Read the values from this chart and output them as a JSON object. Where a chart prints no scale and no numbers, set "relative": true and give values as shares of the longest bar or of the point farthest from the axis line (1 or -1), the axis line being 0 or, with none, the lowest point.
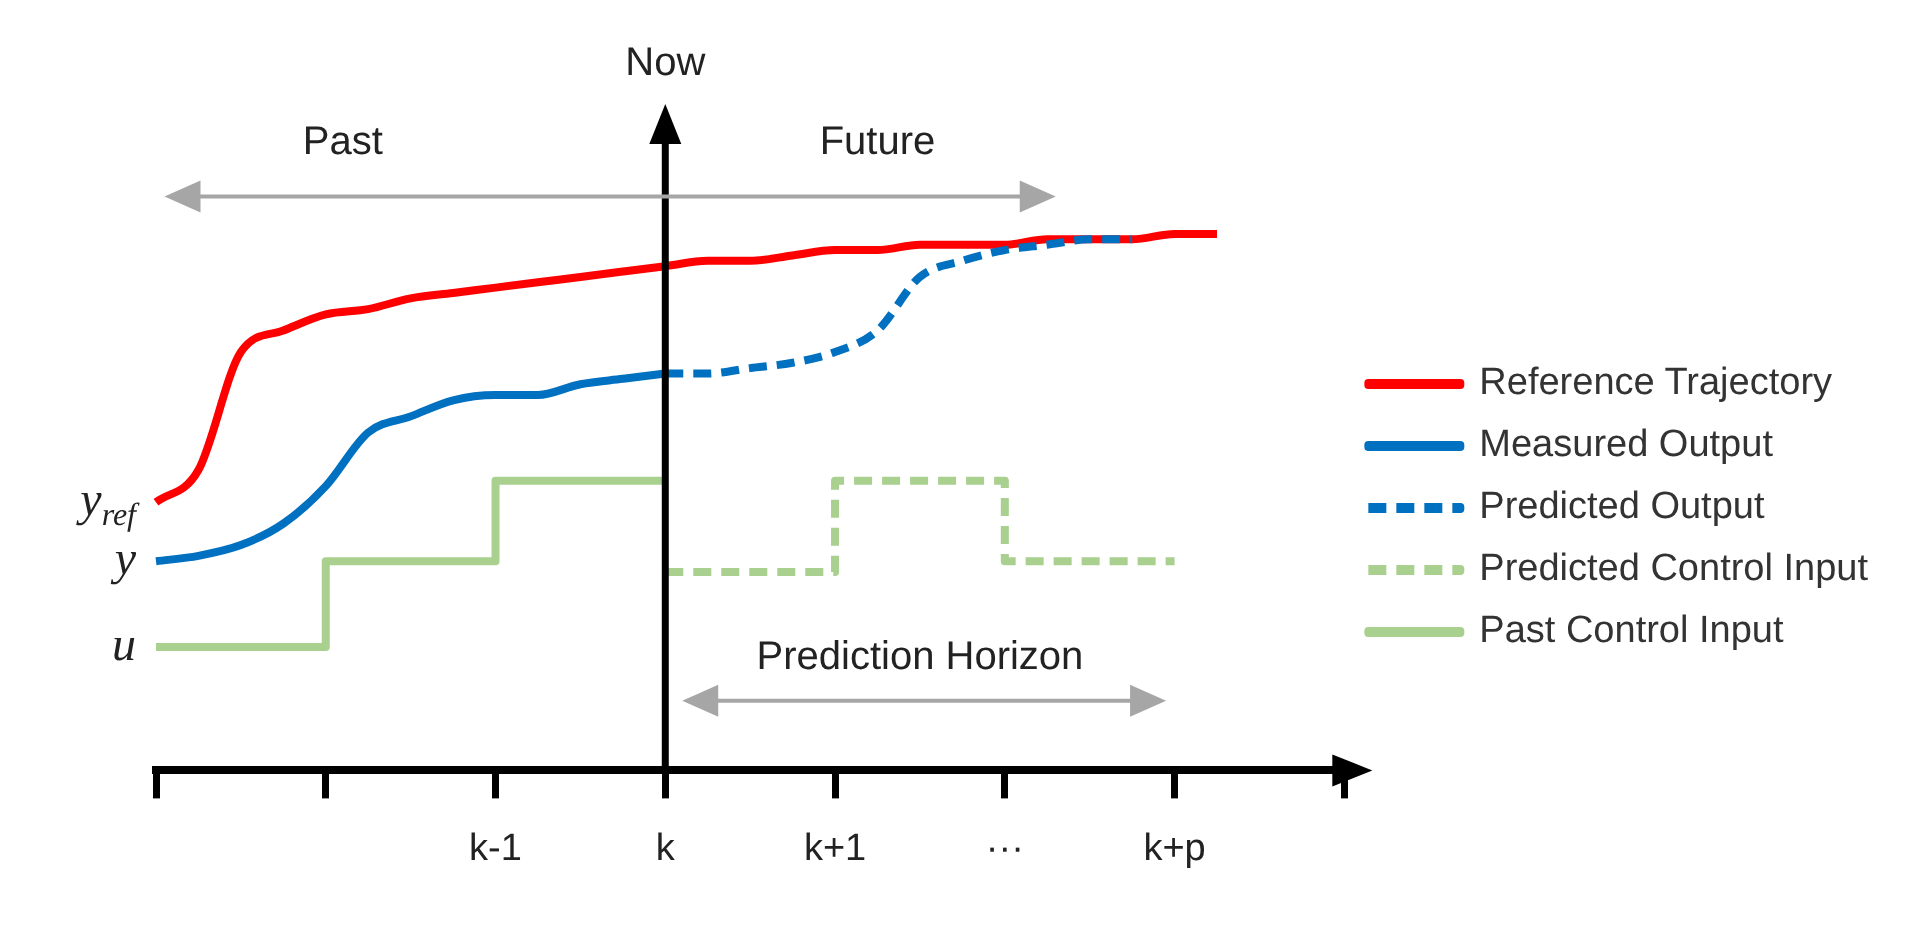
{
  "chart_data": {
    "type": "line",
    "relative": true,
    "categories": [
      null,
      null,
      null,
      null,
      null,
      null,
      null,
      null,
      "k-1",
      null,
      null,
      null,
      "k",
      null,
      null,
      null,
      "k+1",
      null,
      null,
      null,
      "···",
      null,
      null,
      null,
      "k+p",
      null,
      null,
      null,
      null
    ],
    "ref_lines": [
      {
        "axis": "x",
        "value": "k",
        "label": "Now",
        "color": "#000000"
      }
    ],
    "annotations": [
      "Past",
      "Future",
      "Prediction Horizon",
      "y$_{ref}$",
      "y",
      "u"
    ],
    "legend": "right",
    "grid": false,
    "marker": "none",
    "series": [
      {
        "name": "Reference Trajectory",
        "type": "line",
        "line_style": "solid",
        "color": "#ff0000",
        "values": [
          0.5,
          0.56,
          0.78,
          0.82,
          0.85,
          0.86,
          0.88,
          0.89,
          0.9,
          0.91,
          0.92,
          0.93,
          0.94,
          0.95,
          0.95,
          0.96,
          0.97,
          0.97,
          0.98,
          0.98,
          0.98,
          0.99,
          0.99,
          0.99,
          1,
          1,
          null,
          null,
          null
        ]
      },
      {
        "name": "Measured Output",
        "type": "line",
        "line_style": "solid",
        "color": "#0070c0",
        "values": [
          0.39,
          0.4,
          0.42,
          0.46,
          0.53,
          0.63,
          0.66,
          0.69,
          0.7,
          0.7,
          0.72,
          0.73,
          0.74,
          null,
          null,
          null,
          null,
          null,
          null,
          null,
          null,
          null,
          null,
          null,
          null,
          null,
          null,
          null,
          null
        ]
      },
      {
        "name": "Predicted Output",
        "type": "line",
        "line_style": "dashed",
        "color": "#0070c0",
        "values": [
          null,
          null,
          null,
          null,
          null,
          null,
          null,
          null,
          null,
          null,
          null,
          null,
          0.74,
          0.74,
          0.75,
          0.76,
          0.78,
          0.82,
          0.92,
          0.95,
          0.97,
          0.98,
          0.99,
          0.99,
          null,
          null,
          null,
          null,
          null
        ]
      },
      {
        "name": "Predicted Control Input",
        "type": "step",
        "line_style": "dashed",
        "color": "#a9d08e",
        "values": [
          null,
          null,
          null,
          null,
          null,
          null,
          null,
          null,
          null,
          null,
          null,
          null,
          0.37,
          0.37,
          0.37,
          0.37,
          0.54,
          0.54,
          0.54,
          0.54,
          0.39,
          0.39,
          0.39,
          0.39,
          0.39,
          null,
          null,
          null,
          null
        ]
      },
      {
        "name": "Past Control Input",
        "type": "step",
        "line_style": "solid",
        "color": "#a9d08e",
        "values": [
          0.23,
          0.23,
          0.23,
          0.23,
          0.39,
          0.39,
          0.39,
          0.39,
          0.54,
          0.54,
          0.54,
          0.54,
          0.54,
          null,
          null,
          null,
          null,
          null,
          null,
          null,
          null,
          null,
          null,
          null,
          null,
          null,
          null,
          null,
          null
        ]
      }
    ]
  }
}
